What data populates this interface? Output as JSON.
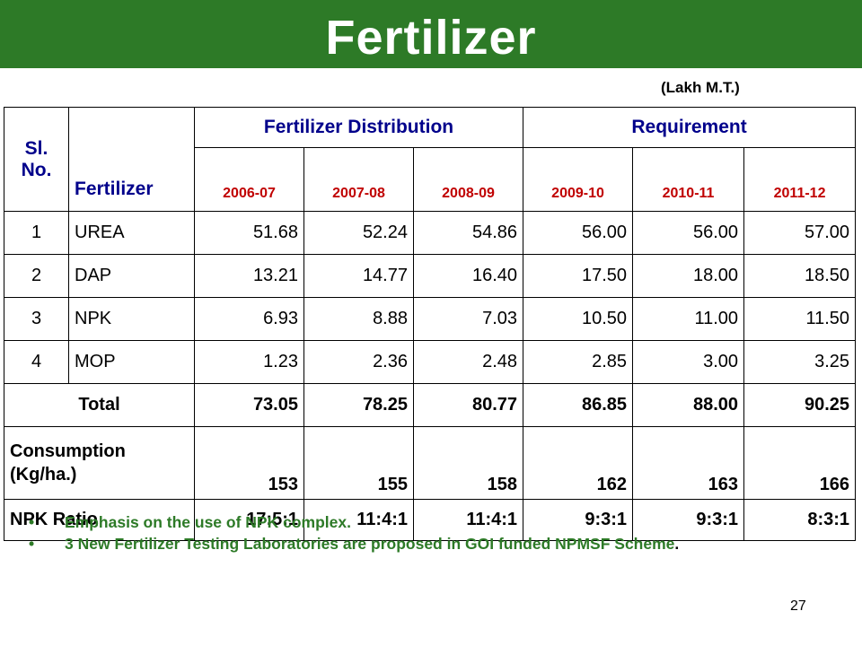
{
  "title": "Fertilizer",
  "unit_note": "(Lakh M.T.)",
  "table": {
    "col_sl": "Sl. No.",
    "col_fertilizer": "Fertilizer",
    "group_distribution": "Fertilizer Distribution",
    "group_requirement": "Requirement",
    "years": [
      "2006-07",
      "2007-08",
      "2008-09",
      "2009-10",
      "2010-11",
      "2011-12"
    ],
    "rows": [
      {
        "sl": "1",
        "name": "UREA",
        "values": [
          "51.68",
          "52.24",
          "54.86",
          "56.00",
          "56.00",
          "57.00"
        ]
      },
      {
        "sl": "2",
        "name": "DAP",
        "values": [
          "13.21",
          "14.77",
          "16.40",
          "17.50",
          "18.00",
          "18.50"
        ]
      },
      {
        "sl": "3",
        "name": "NPK",
        "values": [
          "6.93",
          "8.88",
          "7.03",
          "10.50",
          "11.00",
          "11.50"
        ]
      },
      {
        "sl": "4",
        "name": "MOP",
        "values": [
          "1.23",
          "2.36",
          "2.48",
          "2.85",
          "3.00",
          "3.25"
        ]
      }
    ],
    "total": {
      "label": "Total",
      "values": [
        "73.05",
        "78.25",
        "80.77",
        "86.85",
        "88.00",
        "90.25"
      ]
    },
    "consumption": {
      "label_line1": "Consumption",
      "label_line2": "(Kg/ha.)",
      "values": [
        "153",
        "155",
        "158",
        "162",
        "163",
        "166"
      ]
    },
    "npk_ratio": {
      "label": "NPK Ratio",
      "values": [
        "17:5:1",
        "11:4:1",
        "11:4:1",
        "9:3:1",
        "9:3:1",
        "8:3:1"
      ]
    }
  },
  "bullets": [
    {
      "text": "Emphasis on the use of NPK complex.",
      "tail": ""
    },
    {
      "text": "3 New Fertilizer Testing Laboratories are proposed in GOI funded NPMSF Scheme",
      "tail": "."
    }
  ],
  "page_number": "27",
  "colors": {
    "title_bar": "#2d7a27",
    "header_text": "#00008b",
    "year_text": "#c00000",
    "bullet_text": "#2d7a27"
  }
}
